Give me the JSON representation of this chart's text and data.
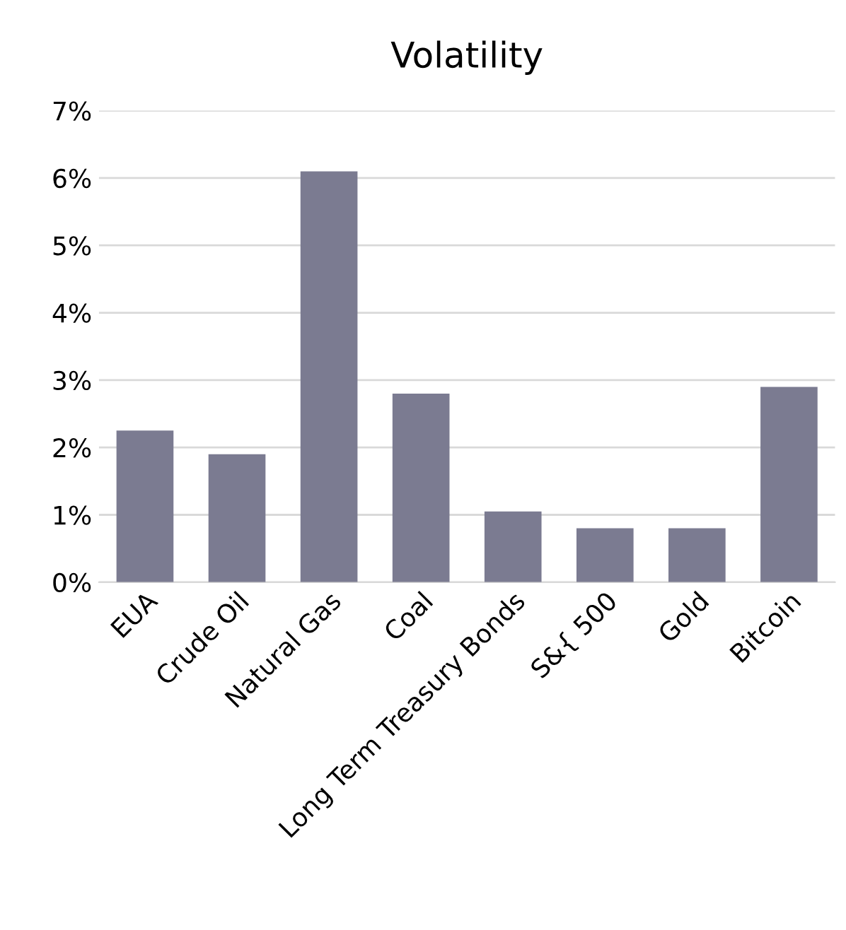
{
  "chart_data": {
    "type": "bar",
    "title": "Volatility",
    "categories": [
      "EUA",
      "Crude Oil",
      "Natural Gas",
      "Coal",
      "Long Term Treasury Bonds",
      "S&{ 500",
      "Gold",
      "Bitcoin"
    ],
    "values": [
      2.25,
      1.9,
      6.1,
      2.8,
      1.05,
      0.8,
      0.8,
      2.9
    ],
    "color": "#7b7b91",
    "ylim": [
      0,
      7
    ],
    "yticks": [
      {
        "value": 0,
        "label": "0%"
      },
      {
        "value": 1,
        "label": "1%"
      },
      {
        "value": 2,
        "label": "2%"
      },
      {
        "value": 3,
        "label": "3%"
      },
      {
        "value": 4,
        "label": "4%"
      },
      {
        "value": 5,
        "label": "5%"
      },
      {
        "value": 6,
        "label": "6%"
      },
      {
        "value": 7,
        "label": "7%"
      }
    ],
    "grid": "y",
    "legend": false
  }
}
